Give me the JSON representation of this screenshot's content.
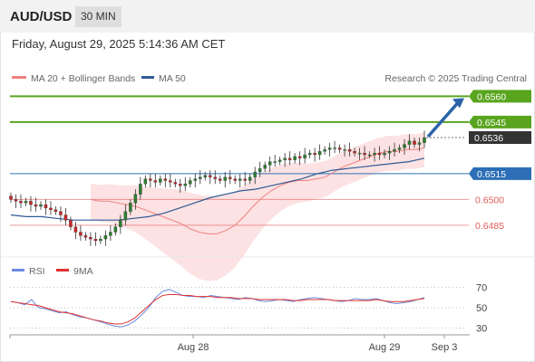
{
  "header": {
    "symbol": "AUD/USD",
    "timeframe": "30 MIN",
    "timestamp": "Friday, August 29, 2025 5:14:36 AM CET"
  },
  "legend": {
    "ma20": "MA 20 + Bollinger Bands",
    "ma50": "MA 50",
    "credit": "Research © 2025 Trading Central",
    "rsi": "RSI",
    "ma9": "9MA"
  },
  "chart_data": [
    {
      "type": "candlestick",
      "title": "",
      "ylim": [
        0.6466,
        0.6566
      ],
      "levels": [
        {
          "label": "0.6560",
          "value": 0.656,
          "style": "green-line"
        },
        {
          "label": "0.6545",
          "value": 0.6545,
          "style": "green-line"
        },
        {
          "label": "0.6536",
          "value": 0.6536,
          "style": "current-price"
        },
        {
          "label": "0.6515",
          "value": 0.6515,
          "style": "blue-line"
        },
        {
          "label": "0.6500",
          "value": 0.65,
          "style": "red-line"
        },
        {
          "label": "0.6485",
          "value": 0.6485,
          "style": "red-line"
        }
      ],
      "closes": [
        0.65,
        0.6499,
        0.6498,
        0.6499,
        0.6497,
        0.6496,
        0.6497,
        0.6495,
        0.6494,
        0.6493,
        0.6491,
        0.6488,
        0.6484,
        0.6481,
        0.6479,
        0.6478,
        0.6477,
        0.6476,
        0.6477,
        0.6479,
        0.6481,
        0.6484,
        0.6488,
        0.6493,
        0.6498,
        0.6503,
        0.6509,
        0.6512,
        0.6511,
        0.651,
        0.6512,
        0.6511,
        0.651,
        0.6509,
        0.6508,
        0.6509,
        0.6511,
        0.6512,
        0.6513,
        0.6514,
        0.6513,
        0.6512,
        0.6511,
        0.6513,
        0.6512,
        0.6511,
        0.6512,
        0.6511,
        0.6513,
        0.6516,
        0.6518,
        0.652,
        0.6522,
        0.6522,
        0.6523,
        0.6524,
        0.6523,
        0.6525,
        0.6524,
        0.6526,
        0.6527,
        0.6526,
        0.6528,
        0.6529,
        0.653,
        0.653,
        0.6529,
        0.6529,
        0.6528,
        0.6527,
        0.6527,
        0.6526,
        0.6526,
        0.6527,
        0.6526,
        0.6527,
        0.6528,
        0.6529,
        0.653,
        0.6532,
        0.6534,
        0.6532,
        0.6533,
        0.6536
      ],
      "ma20": [
        0.65,
        0.6499,
        0.6499,
        0.6498,
        0.6497,
        0.6496,
        0.6494,
        0.6492,
        0.649,
        0.6488,
        0.6486,
        0.6483,
        0.6481,
        0.648,
        0.648,
        0.6482,
        0.6485,
        0.649,
        0.6496,
        0.6501,
        0.6505,
        0.6508,
        0.651,
        0.6511,
        0.6511,
        0.6512,
        0.6513,
        0.6516,
        0.6519,
        0.6521,
        0.6523,
        0.6525,
        0.6527,
        0.6528,
        0.6528,
        0.6529,
        0.6529,
        0.653
      ],
      "ma50": [
        0.6491,
        0.649,
        0.649,
        0.6489,
        0.6488,
        0.6488,
        0.6488,
        0.6488,
        0.6489,
        0.649,
        0.6492,
        0.6495,
        0.6498,
        0.6501,
        0.6503,
        0.6505,
        0.6506,
        0.6508,
        0.651,
        0.6512,
        0.6515,
        0.6517,
        0.6518,
        0.6519,
        0.652,
        0.6521,
        0.6522,
        0.6524
      ]
    },
    {
      "type": "line",
      "title": "",
      "yticks": [
        70,
        50,
        30
      ],
      "ylim": [
        25,
        75
      ],
      "xticks": [
        "Aug 28",
        "Aug 29",
        "Sep 3"
      ],
      "series": [
        {
          "name": "RSI",
          "values": [
            56,
            55,
            53,
            58,
            50,
            49,
            47,
            45,
            46,
            43,
            41,
            40,
            38,
            36,
            34,
            32,
            31,
            33,
            37,
            43,
            50,
            60,
            66,
            68,
            65,
            62,
            61,
            61,
            60,
            62,
            61,
            60,
            59,
            58,
            60,
            59,
            57,
            56,
            57,
            58,
            57,
            56,
            58,
            59,
            60,
            59,
            58,
            57,
            56,
            57,
            59,
            58,
            58,
            59,
            57,
            55,
            54,
            55,
            56,
            58,
            60
          ]
        },
        {
          "name": "9MA",
          "values": [
            56,
            55,
            54,
            53,
            52,
            50,
            48,
            46,
            45,
            44,
            42,
            40,
            38,
            37,
            35,
            34,
            34,
            36,
            40,
            46,
            52,
            58,
            62,
            63,
            63,
            62,
            62,
            61,
            61,
            61,
            60,
            60,
            60,
            59,
            59,
            59,
            58,
            58,
            58,
            58,
            58,
            57,
            57,
            58,
            58,
            58,
            58,
            57,
            57,
            57,
            57,
            57,
            57,
            58,
            57,
            56,
            56,
            56,
            57,
            58,
            59
          ]
        }
      ]
    }
  ],
  "colors": {
    "green": "#5aa51e",
    "blue": "#2c6fb7",
    "red": "#e05a5a",
    "current": "#333333",
    "bands": "#fbd8d8",
    "ma20": "#f08080",
    "ma50": "#2f5a96",
    "rsi": "#6b8ce0",
    "ma9": "#e03030",
    "candleUp": "#2e7d32",
    "candleDown": "#c62828",
    "arrow": "#2b62a8"
  }
}
